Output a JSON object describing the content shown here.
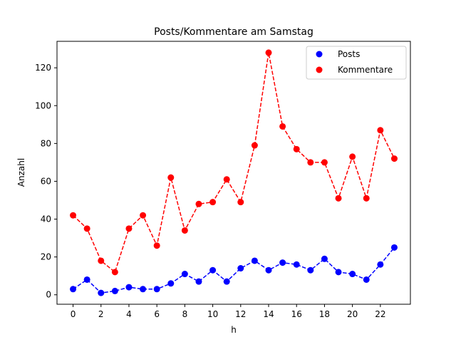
{
  "chart_data": {
    "type": "line",
    "title": "Posts/Kommentare am Samstag",
    "xlabel": "h",
    "ylabel": "Anzahl",
    "x": [
      0,
      1,
      2,
      3,
      4,
      5,
      6,
      7,
      8,
      9,
      10,
      11,
      12,
      13,
      14,
      15,
      16,
      17,
      18,
      19,
      20,
      21,
      22,
      23
    ],
    "xlim": [
      -1.15,
      24.15
    ],
    "ylim": [
      -5,
      134
    ],
    "xticks": [
      0,
      2,
      4,
      6,
      8,
      10,
      12,
      14,
      16,
      18,
      20,
      22
    ],
    "yticks": [
      0,
      20,
      40,
      60,
      80,
      100,
      120
    ],
    "grid": false,
    "legend_position": "top-right",
    "series": [
      {
        "name": "Posts",
        "color": "#0000ff",
        "marker": "circle",
        "line_style": "dashed",
        "values": [
          3,
          8,
          1,
          2,
          4,
          3,
          3,
          6,
          11,
          7,
          13,
          7,
          14,
          18,
          13,
          17,
          16,
          13,
          19,
          12,
          11,
          8,
          16,
          25
        ]
      },
      {
        "name": "Kommentare",
        "color": "#ff0000",
        "marker": "circle",
        "line_style": "dashed",
        "values": [
          42,
          35,
          18,
          12,
          35,
          42,
          26,
          62,
          34,
          48,
          49,
          61,
          49,
          79,
          128,
          89,
          77,
          70,
          70,
          51,
          73,
          51,
          87,
          72
        ]
      }
    ]
  }
}
